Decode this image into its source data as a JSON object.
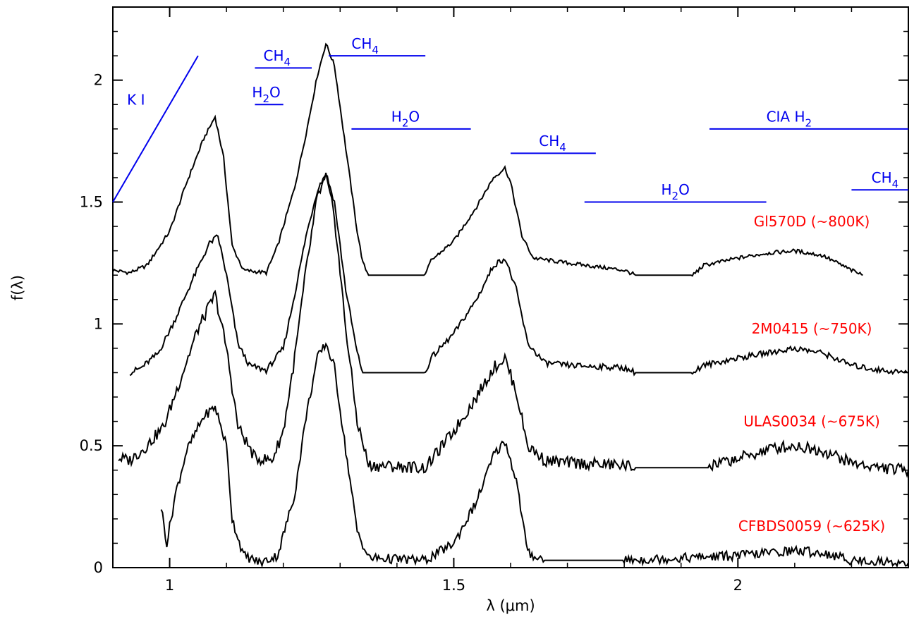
{
  "chart_data": {
    "type": "line",
    "xlabel": "λ (μm)",
    "ylabel": "f(λ)",
    "xlim": [
      0.9,
      2.3
    ],
    "ylim": [
      0,
      2.3
    ],
    "xticks": [
      {
        "value": 1,
        "label": "1"
      },
      {
        "value": 1.5,
        "label": "1.5"
      },
      {
        "value": 2,
        "label": "2"
      }
    ],
    "yticks": [
      {
        "value": 0,
        "label": "0"
      },
      {
        "value": 0.5,
        "label": "0.5"
      },
      {
        "value": 1,
        "label": "1"
      },
      {
        "value": 1.5,
        "label": "1.5"
      },
      {
        "value": 2,
        "label": "2"
      }
    ],
    "grid": false,
    "series": [
      {
        "name": "Gl570D (~800K)",
        "label_xy": [
          2.13,
          1.4
        ],
        "color": "#000000",
        "noise": 0.008,
        "points": [
          [
            0.9,
            1.22
          ],
          [
            0.93,
            1.21
          ],
          [
            0.96,
            1.24
          ],
          [
            1.0,
            1.38
          ],
          [
            1.03,
            1.58
          ],
          [
            1.06,
            1.76
          ],
          [
            1.08,
            1.85
          ],
          [
            1.095,
            1.68
          ],
          [
            1.11,
            1.32
          ],
          [
            1.13,
            1.22
          ],
          [
            1.17,
            1.21
          ],
          [
            1.19,
            1.32
          ],
          [
            1.22,
            1.56
          ],
          [
            1.24,
            1.78
          ],
          [
            1.26,
            2.02
          ],
          [
            1.275,
            2.15
          ],
          [
            1.29,
            2.06
          ],
          [
            1.31,
            1.72
          ],
          [
            1.33,
            1.38
          ],
          [
            1.34,
            1.25
          ],
          [
            1.35,
            1.2
          ],
          [
            1.45,
            1.2
          ],
          [
            1.46,
            1.26
          ],
          [
            1.5,
            1.34
          ],
          [
            1.54,
            1.48
          ],
          [
            1.57,
            1.6
          ],
          [
            1.59,
            1.64
          ],
          [
            1.6,
            1.58
          ],
          [
            1.62,
            1.36
          ],
          [
            1.64,
            1.27
          ],
          [
            1.7,
            1.25
          ],
          [
            1.8,
            1.22
          ],
          [
            1.82,
            1.2
          ],
          [
            1.92,
            1.2
          ],
          [
            1.94,
            1.24
          ],
          [
            2.0,
            1.27
          ],
          [
            2.05,
            1.29
          ],
          [
            2.1,
            1.3
          ],
          [
            2.15,
            1.28
          ],
          [
            2.2,
            1.22
          ],
          [
            2.22,
            1.2
          ]
        ]
      },
      {
        "name": "2M0415 (~750K)",
        "label_xy": [
          2.13,
          0.96
        ],
        "color": "#000000",
        "noise": 0.012,
        "points": [
          [
            0.93,
            0.8
          ],
          [
            0.95,
            0.82
          ],
          [
            0.98,
            0.88
          ],
          [
            1.01,
            1.02
          ],
          [
            1.04,
            1.18
          ],
          [
            1.07,
            1.33
          ],
          [
            1.085,
            1.36
          ],
          [
            1.1,
            1.2
          ],
          [
            1.12,
            0.92
          ],
          [
            1.14,
            0.83
          ],
          [
            1.17,
            0.81
          ],
          [
            1.2,
            0.9
          ],
          [
            1.22,
            1.12
          ],
          [
            1.24,
            1.36
          ],
          [
            1.26,
            1.55
          ],
          [
            1.275,
            1.62
          ],
          [
            1.29,
            1.5
          ],
          [
            1.31,
            1.14
          ],
          [
            1.33,
            0.88
          ],
          [
            1.34,
            0.8
          ],
          [
            1.45,
            0.8
          ],
          [
            1.46,
            0.86
          ],
          [
            1.5,
            0.96
          ],
          [
            1.54,
            1.1
          ],
          [
            1.57,
            1.24
          ],
          [
            1.59,
            1.27
          ],
          [
            1.61,
            1.14
          ],
          [
            1.63,
            0.92
          ],
          [
            1.66,
            0.84
          ],
          [
            1.7,
            0.83
          ],
          [
            1.8,
            0.82
          ],
          [
            1.82,
            0.8
          ],
          [
            1.92,
            0.8
          ],
          [
            1.94,
            0.83
          ],
          [
            2.0,
            0.86
          ],
          [
            2.05,
            0.88
          ],
          [
            2.1,
            0.9
          ],
          [
            2.15,
            0.88
          ],
          [
            2.2,
            0.83
          ],
          [
            2.25,
            0.81
          ],
          [
            2.3,
            0.8
          ]
        ]
      },
      {
        "name": "ULAS0034 (~675K)",
        "label_xy": [
          2.13,
          0.58
        ],
        "color": "#000000",
        "noise": 0.025,
        "points": [
          [
            0.91,
            0.45
          ],
          [
            0.93,
            0.44
          ],
          [
            0.96,
            0.5
          ],
          [
            0.99,
            0.58
          ],
          [
            1.02,
            0.78
          ],
          [
            1.05,
            0.98
          ],
          [
            1.08,
            1.12
          ],
          [
            1.1,
            0.9
          ],
          [
            1.12,
            0.58
          ],
          [
            1.15,
            0.45
          ],
          [
            1.18,
            0.44
          ],
          [
            1.2,
            0.56
          ],
          [
            1.22,
            0.86
          ],
          [
            1.24,
            1.22
          ],
          [
            1.26,
            1.52
          ],
          [
            1.275,
            1.6
          ],
          [
            1.29,
            1.44
          ],
          [
            1.31,
            0.98
          ],
          [
            1.33,
            0.6
          ],
          [
            1.35,
            0.42
          ],
          [
            1.45,
            0.41
          ],
          [
            1.47,
            0.47
          ],
          [
            1.5,
            0.56
          ],
          [
            1.54,
            0.7
          ],
          [
            1.57,
            0.82
          ],
          [
            1.59,
            0.86
          ],
          [
            1.61,
            0.72
          ],
          [
            1.63,
            0.5
          ],
          [
            1.66,
            0.44
          ],
          [
            1.7,
            0.43
          ],
          [
            1.8,
            0.42
          ],
          [
            1.82,
            0.41
          ],
          [
            1.95,
            0.41
          ],
          [
            1.97,
            0.43
          ],
          [
            2.02,
            0.46
          ],
          [
            2.06,
            0.49
          ],
          [
            2.1,
            0.5
          ],
          [
            2.15,
            0.48
          ],
          [
            2.2,
            0.43
          ],
          [
            2.25,
            0.41
          ],
          [
            2.3,
            0.4
          ]
        ]
      },
      {
        "name": "CFBDS0059 (~625K)",
        "label_xy": [
          2.13,
          0.15
        ],
        "color": "#000000",
        "noise": 0.02,
        "points": [
          [
            0.985,
            0.25
          ],
          [
            0.995,
            0.1
          ],
          [
            1.01,
            0.3
          ],
          [
            1.03,
            0.48
          ],
          [
            1.06,
            0.62
          ],
          [
            1.08,
            0.66
          ],
          [
            1.1,
            0.5
          ],
          [
            1.11,
            0.2
          ],
          [
            1.13,
            0.05
          ],
          [
            1.16,
            0.02
          ],
          [
            1.19,
            0.05
          ],
          [
            1.22,
            0.3
          ],
          [
            1.24,
            0.62
          ],
          [
            1.26,
            0.86
          ],
          [
            1.275,
            0.92
          ],
          [
            1.29,
            0.82
          ],
          [
            1.31,
            0.48
          ],
          [
            1.33,
            0.15
          ],
          [
            1.35,
            0.04
          ],
          [
            1.45,
            0.03
          ],
          [
            1.5,
            0.1
          ],
          [
            1.54,
            0.27
          ],
          [
            1.57,
            0.46
          ],
          [
            1.59,
            0.52
          ],
          [
            1.61,
            0.36
          ],
          [
            1.63,
            0.06
          ],
          [
            1.66,
            0.03
          ],
          [
            1.8,
            0.03
          ],
          [
            2.0,
            0.05
          ],
          [
            2.05,
            0.06
          ],
          [
            2.1,
            0.07
          ],
          [
            2.15,
            0.06
          ],
          [
            2.2,
            0.03
          ],
          [
            2.3,
            0.02
          ]
        ]
      }
    ],
    "bands": [
      {
        "label": "K I",
        "sub": "",
        "x1": 0.9,
        "y1": 1.5,
        "x2": 1.05,
        "y2": 2.1,
        "lx": 0.925,
        "ly": 1.9
      },
      {
        "label": "CH",
        "sub": "4",
        "x1": 1.15,
        "y1": 2.05,
        "x2": 1.25,
        "y2": 2.05,
        "lx": 1.165,
        "ly": 2.08
      },
      {
        "label": "H",
        "sub": "2",
        "suffix": "O",
        "x1": 1.15,
        "y1": 1.9,
        "x2": 1.2,
        "y2": 1.9,
        "lx": 1.145,
        "ly": 1.93
      },
      {
        "label": "CH",
        "sub": "4",
        "x1": 1.28,
        "y1": 2.1,
        "x2": 1.45,
        "y2": 2.1,
        "lx": 1.32,
        "ly": 2.13
      },
      {
        "label": "H",
        "sub": "2",
        "suffix": "O",
        "x1": 1.32,
        "y1": 1.8,
        "x2": 1.53,
        "y2": 1.8,
        "lx": 1.39,
        "ly": 1.83
      },
      {
        "label": "CH",
        "sub": "4",
        "x1": 1.6,
        "y1": 1.7,
        "x2": 1.75,
        "y2": 1.7,
        "lx": 1.65,
        "ly": 1.73
      },
      {
        "label": "H",
        "sub": "2",
        "suffix": "O",
        "x1": 1.73,
        "y1": 1.5,
        "x2": 2.05,
        "y2": 1.5,
        "lx": 1.865,
        "ly": 1.53
      },
      {
        "label": "CIA H",
        "sub": "2",
        "x1": 1.95,
        "y1": 1.8,
        "x2": 2.3,
        "y2": 1.8,
        "lx": 2.05,
        "ly": 1.83
      },
      {
        "label": "CH",
        "sub": "4",
        "x1": 2.2,
        "y1": 1.55,
        "x2": 2.3,
        "y2": 1.55,
        "lx": 2.235,
        "ly": 1.58
      }
    ],
    "colors": {
      "band": "#0000ee",
      "label": "#ff0000",
      "axis": "#000000"
    }
  }
}
